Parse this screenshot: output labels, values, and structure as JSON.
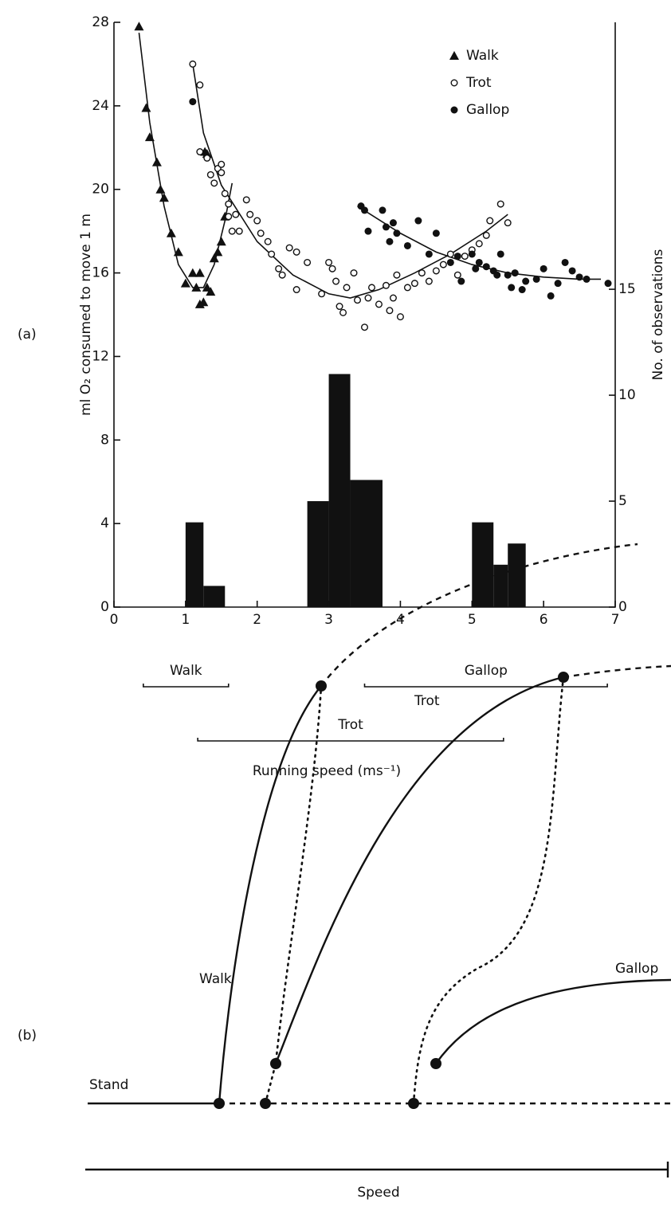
{
  "chart_data": {
    "type": "scatter",
    "panel_label": "(a)",
    "y_label": "ml O₂ consumed to move 1 m",
    "y2_label": "No. of observations",
    "x_label": "Running speed (ms⁻¹)",
    "xlim": [
      0,
      7
    ],
    "xticks": [
      0,
      1,
      2,
      3,
      4,
      5,
      6,
      7
    ],
    "ylim": [
      0,
      28
    ],
    "yticks": [
      0,
      4,
      8,
      12,
      16,
      20,
      24,
      28
    ],
    "y2lim": [
      0,
      27.6
    ],
    "y2ticks": [
      0,
      5,
      10,
      15
    ],
    "legend": "top-right",
    "series": [
      {
        "name": "Walk",
        "marker": "triangle",
        "color": "#111",
        "x": [
          0.35,
          0.45,
          0.5,
          0.6,
          0.65,
          0.7,
          0.8,
          0.9,
          1.0,
          1.1,
          1.15,
          1.2,
          1.2,
          1.25,
          1.3,
          1.35,
          1.4,
          1.45,
          1.5,
          1.55,
          1.27,
          1.3
        ],
        "values": [
          27.8,
          23.9,
          22.5,
          21.3,
          20,
          19.6,
          17.9,
          17,
          15.5,
          16,
          15.3,
          16,
          14.5,
          14.6,
          15.3,
          15.1,
          16.7,
          17,
          17.5,
          18.7,
          21.8,
          21.7
        ]
      },
      {
        "name": "Trot",
        "marker": "open-circle",
        "color": "#111",
        "x": [
          1.1,
          1.2,
          1.2,
          1.3,
          1.35,
          1.4,
          1.45,
          1.5,
          1.5,
          1.55,
          1.6,
          1.6,
          1.65,
          1.7,
          1.75,
          1.85,
          1.9,
          2.0,
          2.05,
          2.15,
          2.2,
          2.3,
          2.35,
          2.45,
          2.55,
          2.55,
          2.7,
          2.9,
          3.0,
          3.05,
          3.1,
          3.15,
          3.2,
          3.25,
          3.35,
          3.4,
          3.5,
          3.55,
          3.6,
          3.7,
          3.8,
          3.85,
          3.9,
          3.95,
          4.0,
          4.1,
          4.2,
          4.3,
          4.4,
          4.5,
          4.6,
          4.7,
          4.8,
          4.9,
          5.0,
          5.1,
          5.2,
          5.25,
          5.4,
          5.5
        ],
        "values": [
          26,
          25,
          21.8,
          21.5,
          20.7,
          20.3,
          21,
          21.2,
          20.8,
          19.8,
          19.3,
          18.7,
          18,
          18.8,
          18,
          19.5,
          18.8,
          18.5,
          17.9,
          17.5,
          16.9,
          16.2,
          15.9,
          17.2,
          17,
          15.2,
          16.5,
          15,
          16.5,
          16.2,
          15.6,
          14.4,
          14.1,
          15.3,
          16,
          14.7,
          13.4,
          14.8,
          15.3,
          14.5,
          15.4,
          14.2,
          14.8,
          15.9,
          13.9,
          15.3,
          15.5,
          16,
          15.6,
          16.1,
          16.4,
          16.9,
          15.9,
          16.8,
          17.1,
          17.4,
          17.8,
          18.5,
          19.3,
          18.4
        ]
      },
      {
        "name": "Gallop",
        "marker": "filled-circle",
        "color": "#111",
        "x": [
          1.1,
          3.45,
          3.5,
          3.55,
          3.75,
          3.8,
          3.85,
          3.9,
          3.95,
          4.1,
          4.25,
          4.4,
          4.5,
          4.7,
          4.8,
          4.85,
          5.0,
          5.05,
          5.1,
          5.2,
          5.3,
          5.35,
          5.4,
          5.5,
          5.55,
          5.6,
          5.7,
          5.75,
          5.9,
          6.0,
          6.1,
          6.2,
          6.3,
          6.4,
          6.5,
          6.6,
          6.9
        ],
        "values": [
          24.2,
          19.2,
          19,
          18,
          19,
          18.2,
          17.5,
          18.4,
          17.9,
          17.3,
          18.5,
          16.9,
          17.9,
          16.5,
          16.8,
          15.6,
          16.9,
          16.2,
          16.5,
          16.3,
          16.1,
          15.9,
          16.9,
          15.9,
          15.3,
          16,
          15.2,
          15.6,
          15.7,
          16.2,
          14.9,
          15.5,
          16.5,
          16.1,
          15.8,
          15.7,
          15.5
        ]
      }
    ],
    "fit_curves": [
      {
        "x": [
          0.35,
          0.5,
          0.7,
          0.9,
          1.1,
          1.25,
          1.4,
          1.55,
          1.65
        ],
        "values": [
          27.5,
          23.2,
          19.2,
          16.4,
          15.3,
          15.3,
          16.4,
          18.5,
          20.3
        ]
      },
      {
        "x": [
          1.1,
          1.25,
          1.5,
          2,
          2.5,
          3,
          3.3,
          3.7,
          4.2,
          4.7,
          5.2,
          5.5
        ],
        "values": [
          26,
          22.7,
          20.2,
          17.5,
          15.9,
          15,
          14.8,
          15.2,
          16,
          16.9,
          18,
          18.8
        ]
      },
      {
        "x": [
          3.4,
          4,
          4.5,
          5,
          5.5,
          6,
          6.5,
          6.8
        ],
        "values": [
          19.2,
          17.9,
          17,
          16.4,
          16,
          15.8,
          15.7,
          15.7
        ]
      }
    ],
    "histogram": {
      "axis": "y2",
      "color": "#111",
      "bins": [
        1.0,
        1.25,
        1.55,
        2.7,
        3.0,
        3.3,
        3.75,
        5.0,
        5.3,
        5.5,
        5.75
      ],
      "counts": [
        4,
        1,
        0,
        5,
        11,
        6,
        0,
        4,
        2,
        3
      ]
    },
    "gait_ranges": [
      {
        "label": "Walk",
        "range": [
          0.41,
          1.6
        ]
      },
      {
        "label": "Trot",
        "range": [
          1.17,
          5.44
        ]
      },
      {
        "label": "Gallop",
        "range": [
          3.5,
          6.89
        ]
      }
    ]
  },
  "diagram": {
    "panel_label": "(b)",
    "labels": [
      "Walk",
      "Trot",
      "Gallop",
      "Stand"
    ],
    "axis_label": "Speed"
  }
}
